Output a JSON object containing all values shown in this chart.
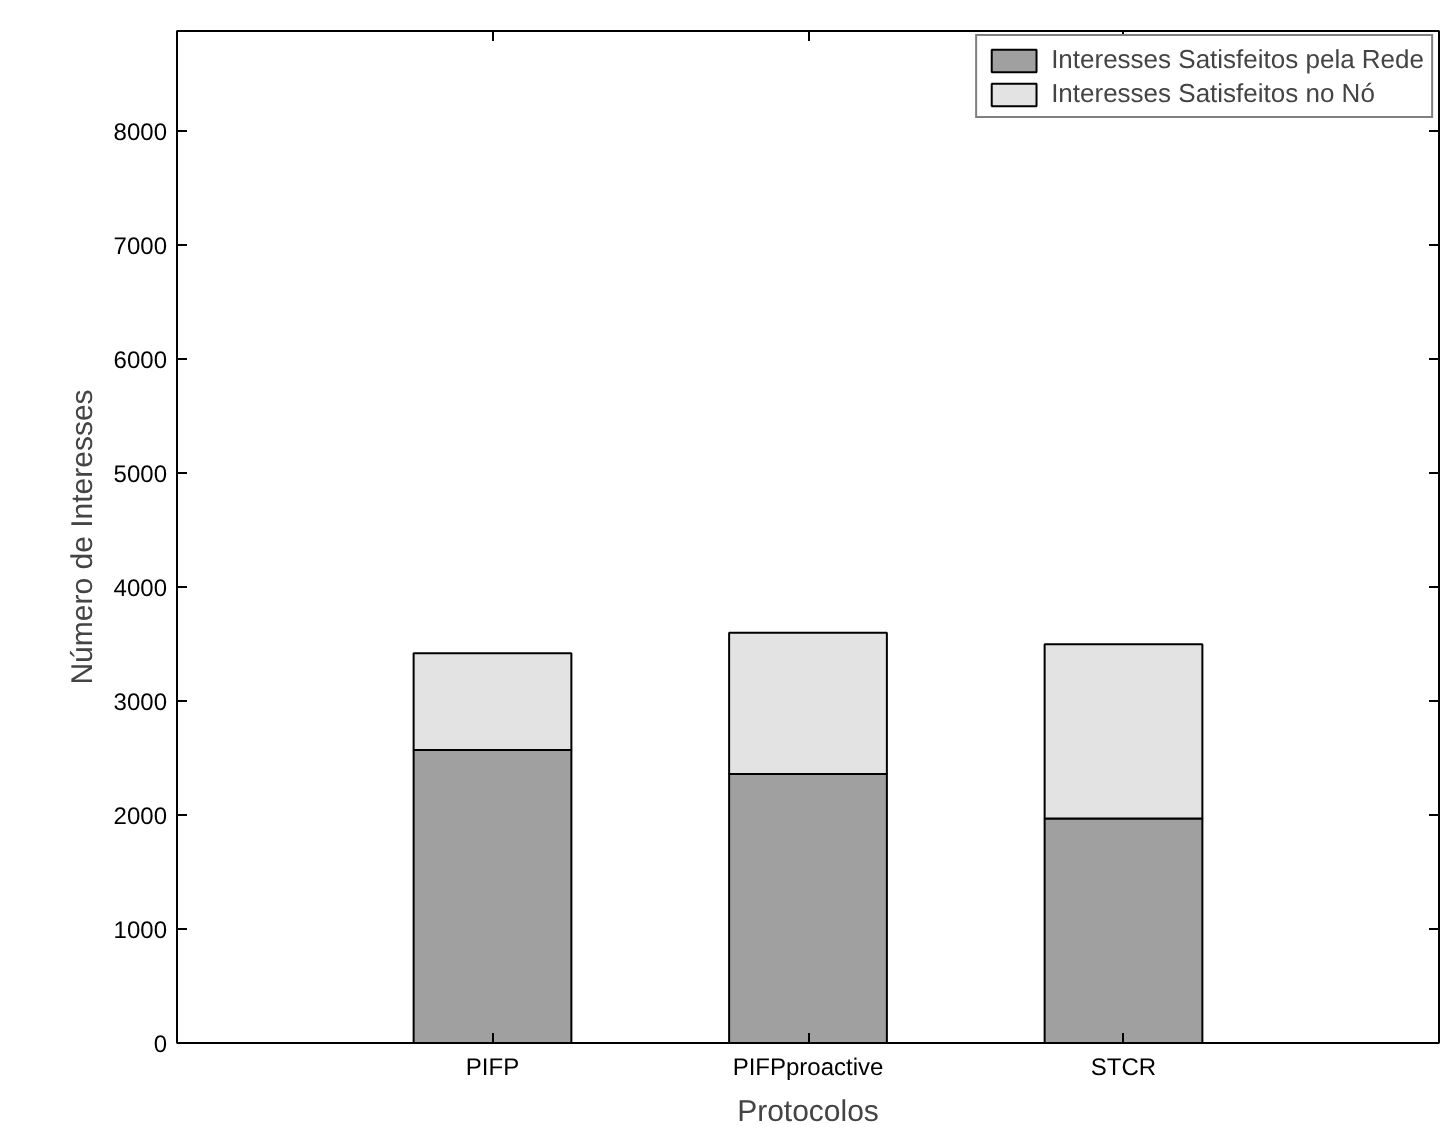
{
  "chart_data": {
    "type": "bar",
    "stacked": true,
    "categories": [
      "PIFP",
      "PIFPproactive",
      "STCR"
    ],
    "xlabel": "Protocolos",
    "ylabel": "Número de Interesses",
    "series": [
      {
        "name": "Interesses Satisfeitos pela Rede",
        "color": "#a0a0a0",
        "values": [
          2570,
          2360,
          1970
        ]
      },
      {
        "name": "Interesses Satisfeitos no Nó",
        "color": "#e3e3e3",
        "values": [
          850,
          1240,
          1530
        ]
      }
    ],
    "ylim": [
      0,
      8880
    ],
    "yticks": [
      0,
      1000,
      2000,
      3000,
      4000,
      5000,
      6000,
      7000,
      8000
    ],
    "grid": false,
    "legend": "top right"
  }
}
